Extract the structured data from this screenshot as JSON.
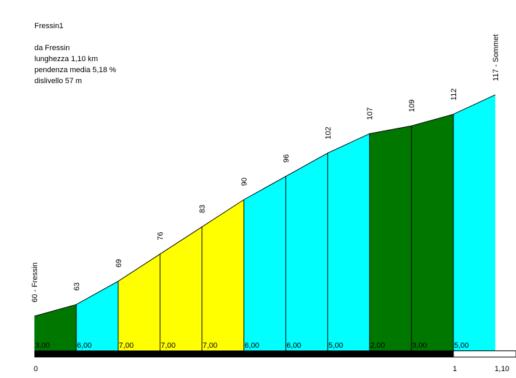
{
  "chart_data": {
    "type": "area",
    "title": "Fressin1",
    "info_lines": [
      "da Fressin",
      "lunghezza 1,10 km",
      "pendenza media 5,18 %",
      "dislivello 57 m"
    ],
    "distance_km": [
      0,
      0.1,
      0.2,
      0.3,
      0.4,
      0.5,
      0.6,
      0.7,
      0.8,
      0.9,
      1.0,
      1.1
    ],
    "elevation_labels": [
      "60 - Fressin",
      "63",
      "69",
      "76",
      "83",
      "90",
      "96",
      "102",
      "107",
      "109",
      "112",
      "117 - Sommet"
    ],
    "elevations_m": [
      60,
      63,
      69,
      76,
      83,
      90,
      96,
      102,
      107,
      109,
      112,
      117
    ],
    "gradient_labels": [
      "3,00",
      "6,00",
      "7,00",
      "7,00",
      "7,00",
      "6,00",
      "6,00",
      "5,00",
      "2,00",
      "3,00",
      "5,00"
    ],
    "segment_colors": [
      "#007800",
      "#00ffff",
      "#ffff00",
      "#ffff00",
      "#ffff00",
      "#00ffff",
      "#00ffff",
      "#00ffff",
      "#007800",
      "#007800",
      "#00ffff"
    ],
    "x_tick_labels": [
      {
        "km": 0,
        "label": "0"
      },
      {
        "km": 1.0,
        "label": "1"
      },
      {
        "km": 1.1,
        "label": "1,10"
      }
    ],
    "grid": false
  }
}
